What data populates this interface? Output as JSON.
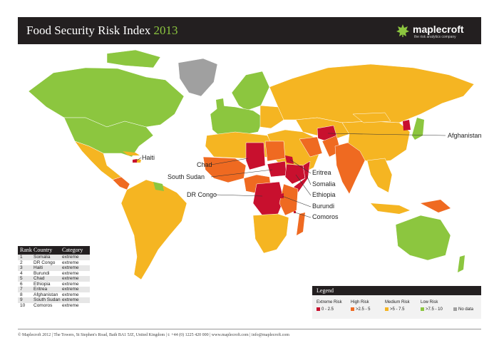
{
  "header": {
    "title": "Food Security Risk Index",
    "year": "2013"
  },
  "brand": {
    "name": "maplecroft",
    "tagline": "the risk analytics company"
  },
  "colors": {
    "extreme": "#c8102e",
    "high": "#ef6a21",
    "medium": "#f5b522",
    "low": "#8cc63f",
    "nodata": "#a0a0a0"
  },
  "callouts": {
    "haiti": "Haiti",
    "chad": "Chad",
    "south_sudan": "South Sudan",
    "dr_congo": "DR Congo",
    "afghanistan": "Afghanistan",
    "eritrea": "Eritrea",
    "somalia": "Somalia",
    "ethiopia": "Ethiopia",
    "burundi": "Burundi",
    "comoros": "Comoros"
  },
  "ranking": {
    "headers": [
      "Rank",
      "Country",
      "Category"
    ],
    "rows": [
      [
        "1",
        "Somalia",
        "extreme"
      ],
      [
        "2",
        "DR Congo",
        "extreme"
      ],
      [
        "3",
        "Haiti",
        "extreme"
      ],
      [
        "4",
        "Burundi",
        "extreme"
      ],
      [
        "5",
        "Chad",
        "extreme"
      ],
      [
        "6",
        "Ethiopia",
        "extreme"
      ],
      [
        "7",
        "Eritrea",
        "extreme"
      ],
      [
        "8",
        "Afghanistan",
        "extreme"
      ],
      [
        "9",
        "South Sudan",
        "extreme"
      ],
      [
        "10",
        "Comoros",
        "extreme"
      ]
    ]
  },
  "legend": {
    "title": "Legend",
    "items": [
      {
        "label": "Extreme Risk",
        "range": "0 - 2.5"
      },
      {
        "label": "High Risk",
        "range": ">2.5 - 5"
      },
      {
        "label": "Medium Risk",
        "range": ">5 - 7.5"
      },
      {
        "label": "Low Risk",
        "range": ">7.5 - 10"
      },
      {
        "label": "",
        "range": "No data"
      }
    ]
  },
  "footer": {
    "text": "© Maplecroft 2012 | The Towers, St Stephen's Road, Bath BA1 5JZ, United Kingdom | t: +44 (0) 1225 420 000 | www.maplecroft.com | info@maplecroft.com"
  }
}
